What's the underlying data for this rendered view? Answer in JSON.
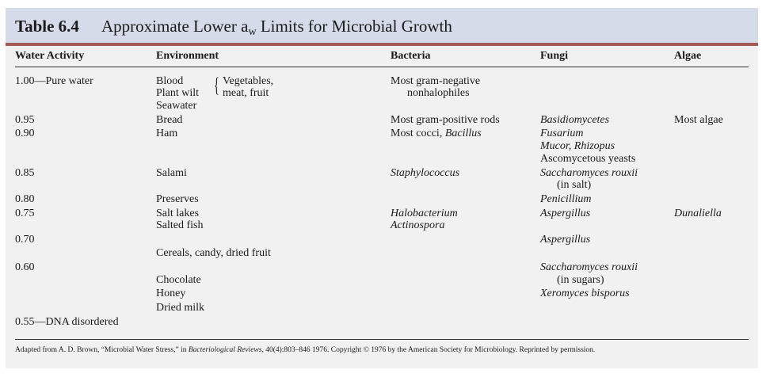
{
  "table": {
    "label": "Table 6.4",
    "caption_pre": "Approximate Lower a",
    "caption_sub": "w",
    "caption_post": " Limits for Microbial Growth"
  },
  "headers": {
    "water_activity": "Water Activity",
    "environment": "Environment",
    "bacteria": "Bacteria",
    "fungi": "Fungi",
    "algae": "Algae"
  },
  "water_activity": {
    "r100": "1.00—Pure water",
    "r095": "0.95",
    "r090": "0.90",
    "r085": "0.85",
    "r080": "0.80",
    "r075": "0.75",
    "r070": "0.70",
    "r060": "0.60",
    "r055": "0.55—DNA disordered"
  },
  "environment": {
    "blood": "Blood",
    "plant_wilt": "Plant wilt",
    "seawater": "Seawater",
    "brace_1": "Vegetables,",
    "brace_2": "meat, fruit",
    "bread": "Bread",
    "ham": "Ham",
    "salami": "Salami",
    "preserves": "Preserves",
    "salt_lakes": "Salt lakes",
    "salted_fish": "Salted fish",
    "cereals": "Cereals, candy, dried fruit",
    "chocolate": "Chocolate",
    "honey": "Honey",
    "dried_milk": "Dried milk"
  },
  "bacteria": {
    "gram_neg_1": "Most gram-negative",
    "gram_neg_2": "nonhalophiles",
    "gram_pos": "Most gram-positive rods",
    "cocci_pre": "Most cocci, ",
    "cocci_it": "Bacillus",
    "staph": "Staphylococcus",
    "halobacterium": "Halobacterium",
    "actinospora": "Actinospora"
  },
  "fungi": {
    "basidiomycetes": "Basidiomycetes",
    "fusarium": "Fusarium",
    "mucor": "Mucor, Rhizopus",
    "ascomycetous": "Ascomycetous yeasts",
    "sacch_salt_1": "Saccharomyces rouxii",
    "sacch_salt_2": "(in salt)",
    "penicillium": "Penicillium",
    "aspergillus_075": "Aspergillus",
    "aspergillus_070": "Aspergillus",
    "sacch_sugar_1": "Saccharomyces rouxii",
    "sacch_sugar_2": "(in sugars)",
    "xeromyces": "Xeromyces bisporus"
  },
  "algae": {
    "most_algae": "Most algae",
    "dunaliella": "Dunaliella"
  },
  "footnote": {
    "pre": "Adapted from A. D. Brown, “Microbial Water Stress,” in ",
    "journal": "Bacteriological Reviews,",
    "post": " 40(4):803–846 1976. Copyright © 1976 by the American Society for Microbiology. Reprinted by permission."
  }
}
